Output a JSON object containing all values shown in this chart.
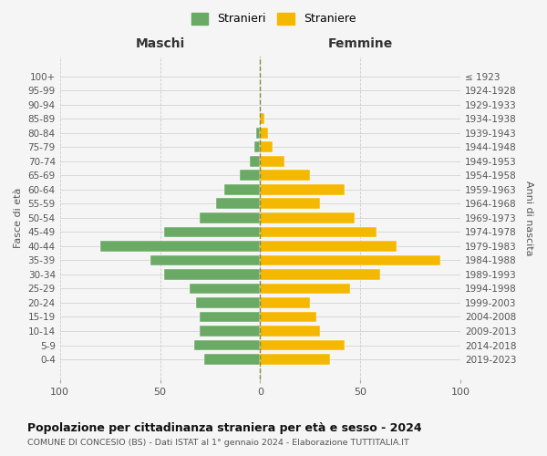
{
  "age_groups": [
    "100+",
    "95-99",
    "90-94",
    "85-89",
    "80-84",
    "75-79",
    "70-74",
    "65-69",
    "60-64",
    "55-59",
    "50-54",
    "45-49",
    "40-44",
    "35-39",
    "30-34",
    "25-29",
    "20-24",
    "15-19",
    "10-14",
    "5-9",
    "0-4"
  ],
  "birth_years": [
    "≤ 1923",
    "1924-1928",
    "1929-1933",
    "1934-1938",
    "1939-1943",
    "1944-1948",
    "1949-1953",
    "1954-1958",
    "1959-1963",
    "1964-1968",
    "1969-1973",
    "1974-1978",
    "1979-1983",
    "1984-1988",
    "1989-1993",
    "1994-1998",
    "1999-2003",
    "2004-2008",
    "2009-2013",
    "2014-2018",
    "2019-2023"
  ],
  "males": [
    0,
    0,
    0,
    0,
    2,
    3,
    5,
    10,
    18,
    22,
    30,
    48,
    80,
    55,
    48,
    35,
    32,
    30,
    30,
    33,
    28
  ],
  "females": [
    0,
    0,
    0,
    2,
    4,
    6,
    12,
    25,
    42,
    30,
    47,
    58,
    68,
    90,
    60,
    45,
    25,
    28,
    30,
    42,
    35
  ],
  "male_color": "#6aaa64",
  "female_color": "#f5b800",
  "background_color": "#f5f5f5",
  "grid_color": "#cccccc",
  "title": "Popolazione per cittadinanza straniera per età e sesso - 2024",
  "subtitle": "COMUNE DI CONCESIO (BS) - Dati ISTAT al 1° gennaio 2024 - Elaborazione TUTTITALIA.IT",
  "xlabel_left": "Maschi",
  "xlabel_right": "Femmine",
  "ylabel_left": "Fasce di età",
  "ylabel_right": "Anni di nascita",
  "legend_male": "Stranieri",
  "legend_female": "Straniere",
  "xlim": 100,
  "bar_height": 0.75
}
